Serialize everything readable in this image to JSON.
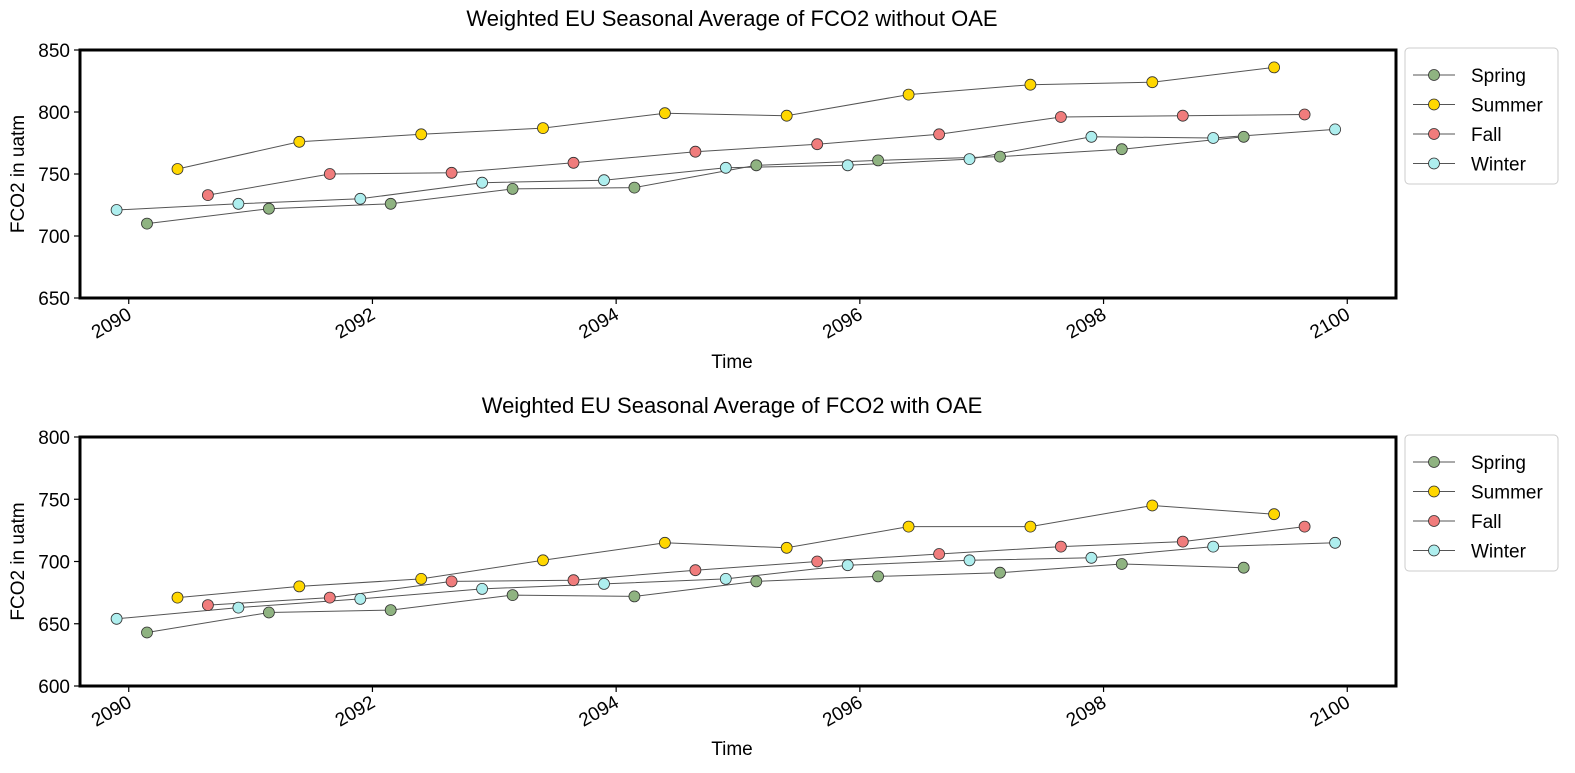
{
  "chart_data": [
    {
      "type": "line",
      "title": "Weighted EU Seasonal Average of FCO2 without OAE",
      "xlabel": "Time",
      "ylabel": "FCO2 in uatm",
      "xlim": [
        2089.6,
        2100.4
      ],
      "ylim": [
        650,
        850
      ],
      "xticks": [
        2090,
        2092,
        2094,
        2096,
        2098,
        2100
      ],
      "yticks": [
        650,
        700,
        750,
        800,
        850
      ],
      "legend_position": "outside-right-top",
      "grid": false,
      "series": [
        {
          "name": "Spring",
          "color": "#8fb381",
          "x": [
            2090.15,
            2091.15,
            2092.15,
            2093.15,
            2094.15,
            2095.15,
            2096.15,
            2097.15,
            2098.15,
            2099.15
          ],
          "y": [
            710,
            722,
            726,
            738,
            739,
            757,
            761,
            764,
            770,
            780
          ]
        },
        {
          "name": "Summer",
          "color": "#ffd700",
          "x": [
            2090.4,
            2091.4,
            2092.4,
            2093.4,
            2094.4,
            2095.4,
            2096.4,
            2097.4,
            2098.4,
            2099.4
          ],
          "y": [
            754,
            776,
            782,
            787,
            799,
            797,
            814,
            822,
            824,
            836
          ]
        },
        {
          "name": "Fall",
          "color": "#f07c7c",
          "x": [
            2090.65,
            2091.65,
            2092.65,
            2093.65,
            2094.65,
            2095.65,
            2096.65,
            2097.65,
            2098.65,
            2099.65
          ],
          "y": [
            733,
            750,
            751,
            759,
            768,
            774,
            782,
            796,
            797,
            798
          ]
        },
        {
          "name": "Winter",
          "color": "#aeeeee",
          "x": [
            2089.9,
            2090.9,
            2091.9,
            2092.9,
            2093.9,
            2094.9,
            2095.9,
            2096.9,
            2097.9,
            2098.9,
            2099.9
          ],
          "y": [
            721,
            726,
            730,
            743,
            745,
            755,
            757,
            762,
            780,
            779,
            786
          ]
        }
      ]
    },
    {
      "type": "line",
      "title": "Weighted EU Seasonal Average of FCO2 with OAE",
      "xlabel": "Time",
      "ylabel": "FCO2 in uatm",
      "xlim": [
        2089.6,
        2100.4
      ],
      "ylim": [
        600,
        800
      ],
      "xticks": [
        2090,
        2092,
        2094,
        2096,
        2098,
        2100
      ],
      "yticks": [
        600,
        650,
        700,
        750,
        800
      ],
      "legend_position": "outside-right-top",
      "grid": false,
      "series": [
        {
          "name": "Spring",
          "color": "#8fb381",
          "x": [
            2090.15,
            2091.15,
            2092.15,
            2093.15,
            2094.15,
            2095.15,
            2096.15,
            2097.15,
            2098.15,
            2099.15
          ],
          "y": [
            643,
            659,
            661,
            673,
            672,
            684,
            688,
            691,
            698,
            695
          ]
        },
        {
          "name": "Summer",
          "color": "#ffd700",
          "x": [
            2090.4,
            2091.4,
            2092.4,
            2093.4,
            2094.4,
            2095.4,
            2096.4,
            2097.4,
            2098.4,
            2099.4
          ],
          "y": [
            671,
            680,
            686,
            701,
            715,
            711,
            728,
            728,
            745,
            738
          ]
        },
        {
          "name": "Fall",
          "color": "#f07c7c",
          "x": [
            2090.65,
            2091.65,
            2092.65,
            2093.65,
            2094.65,
            2095.65,
            2096.65,
            2097.65,
            2098.65,
            2099.65
          ],
          "y": [
            665,
            671,
            684,
            685,
            693,
            700,
            706,
            712,
            716,
            728
          ]
        },
        {
          "name": "Winter",
          "color": "#aeeeee",
          "x": [
            2089.9,
            2090.9,
            2091.9,
            2092.9,
            2093.9,
            2094.9,
            2095.9,
            2096.9,
            2097.9,
            2098.9,
            2099.9
          ],
          "y": [
            654,
            663,
            670,
            678,
            682,
            686,
            697,
            701,
            703,
            712,
            715
          ]
        }
      ]
    }
  ]
}
